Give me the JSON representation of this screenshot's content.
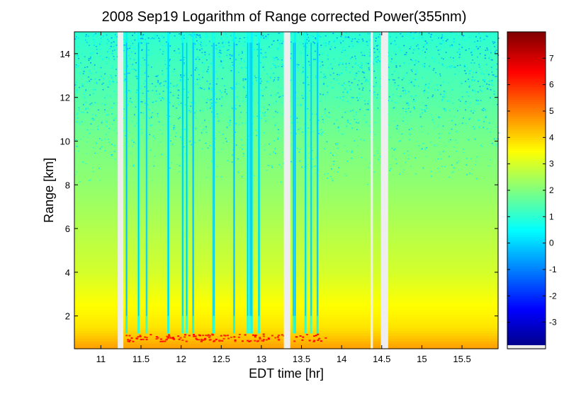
{
  "chart_data": {
    "type": "heatmap",
    "title": "2008 Sep19  Logarithm of Range corrected Power(355nm)",
    "xlabel": "EDT time [hr]",
    "ylabel": "Range [km]",
    "xlim": [
      10.67,
      15.95
    ],
    "ylim": [
      0.5,
      15.0
    ],
    "x_ticks": [
      11,
      11.5,
      12,
      12.5,
      13,
      13.5,
      14,
      14.5,
      15,
      15.5
    ],
    "x_tick_labels": [
      "11",
      "11.5",
      "12",
      "12.5",
      "13",
      "13.5",
      "14",
      "14.5",
      "15",
      "15.5"
    ],
    "y_ticks": [
      2,
      4,
      6,
      8,
      10,
      12,
      14
    ],
    "y_tick_labels": [
      "2",
      "4",
      "6",
      "8",
      "10",
      "12",
      "14"
    ],
    "colorbar": {
      "colormap": "jet",
      "range": [
        -4,
        8
      ],
      "ticks": [
        -3,
        -2,
        -1,
        0,
        1,
        2,
        3,
        4,
        5,
        6,
        7
      ],
      "tick_labels": [
        "-3",
        "-2",
        "-1",
        "0",
        "1",
        "2",
        "3",
        "4",
        "5",
        "6",
        "7"
      ]
    },
    "value_profile_by_range": [
      {
        "range_km": 0.6,
        "value": 4.6
      },
      {
        "range_km": 1.0,
        "value": 4.2
      },
      {
        "range_km": 1.5,
        "value": 3.8
      },
      {
        "range_km": 2.5,
        "value": 3.5
      },
      {
        "range_km": 4.0,
        "value": 3.0
      },
      {
        "range_km": 6.0,
        "value": 2.6
      },
      {
        "range_km": 8.0,
        "value": 2.2
      },
      {
        "range_km": 10.0,
        "value": 1.9
      },
      {
        "range_km": 12.0,
        "value": 1.5
      },
      {
        "range_km": 14.0,
        "value": 1.2
      },
      {
        "range_km": 15.0,
        "value": 1.0
      }
    ],
    "boundary_layer_top_km": 1.1,
    "data_gaps_hr": [
      [
        11.21,
        11.28
      ],
      [
        13.28,
        13.36
      ],
      [
        14.36,
        14.39
      ],
      [
        14.49,
        14.58
      ]
    ],
    "low_signal_streaks_hr": [
      11.32,
      11.47,
      11.57,
      11.84,
      12.02,
      12.07,
      12.15,
      12.4,
      12.41,
      12.66,
      12.83,
      12.86,
      12.88,
      12.97,
      13.4,
      13.42,
      13.55,
      13.62,
      13.7
    ]
  }
}
